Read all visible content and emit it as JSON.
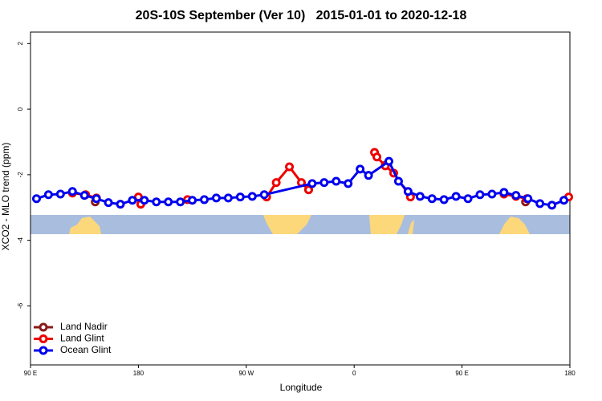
{
  "chart_data": {
    "type": "line",
    "title": "20S-10S September (Ver 10)   2015-01-01 to 2020-12-18",
    "x_label": "Longitude",
    "y_label": "XCO2 - MLO trend (ppm)",
    "xlim": [
      90,
      540
    ],
    "xticks": [
      {
        "value": 90,
        "label": "90 E"
      },
      180,
      {
        "value": 270,
        "label": "90 W"
      },
      {
        "value": 360,
        "label": "0"
      },
      {
        "value": 450,
        "label": "90 E"
      },
      {
        "value": 540,
        "label": "180"
      }
    ],
    "ylim": [
      -7.8,
      2.35
    ],
    "yticks": [
      -6,
      -4,
      -2,
      0,
      2
    ],
    "legend": "bottom-left",
    "series": [
      {
        "name": "Land Nadir",
        "color": "#8b1a1a",
        "x": [
          144,
          null,
          322,
          null,
          386,
          null,
          503
        ],
        "values": [
          -2.83,
          null,
          -2.46,
          null,
          -1.71,
          null,
          -2.83
        ]
      },
      {
        "name": "Land Glint",
        "color": "#ee0000",
        "x": [
          125,
          136,
          145,
          null,
          180,
          182,
          null,
          221,
          null,
          287,
          295,
          306,
          316,
          322,
          null,
          377,
          379,
          386,
          393,
          407,
          null,
          485,
          495,
          504,
          null,
          539
        ],
        "values": [
          -2.56,
          -2.61,
          -2.71,
          null,
          -2.68,
          -2.9,
          null,
          -2.76,
          null,
          -2.68,
          -2.24,
          -1.76,
          -2.24,
          -2.46,
          null,
          -1.32,
          -1.46,
          -1.73,
          -1.95,
          -2.68,
          null,
          -2.59,
          -2.66,
          -2.73,
          null,
          -2.68
        ]
      },
      {
        "name": "Ocean Glint",
        "color": "#0000ee",
        "x": [
          95,
          105,
          115,
          125,
          135,
          145,
          155,
          165,
          175,
          185,
          195,
          205,
          215,
          225,
          235,
          245,
          255,
          265,
          275,
          285,
          325,
          335,
          345,
          355,
          365,
          372,
          389,
          397,
          405,
          415,
          425,
          435,
          445,
          455,
          465,
          475,
          485,
          495,
          505,
          515,
          525,
          535
        ],
        "values": [
          -2.73,
          -2.61,
          -2.59,
          -2.51,
          -2.63,
          -2.73,
          -2.85,
          -2.9,
          -2.78,
          -2.78,
          -2.83,
          -2.83,
          -2.83,
          -2.78,
          -2.76,
          -2.71,
          -2.71,
          -2.68,
          -2.66,
          -2.61,
          -2.27,
          -2.24,
          -2.2,
          -2.27,
          -1.83,
          -2.02,
          -1.59,
          -2.2,
          -2.51,
          -2.66,
          -2.73,
          -2.76,
          -2.66,
          -2.73,
          -2.61,
          -2.59,
          -2.54,
          -2.63,
          -2.73,
          -2.88,
          -2.93,
          -2.78
        ]
      }
    ]
  }
}
